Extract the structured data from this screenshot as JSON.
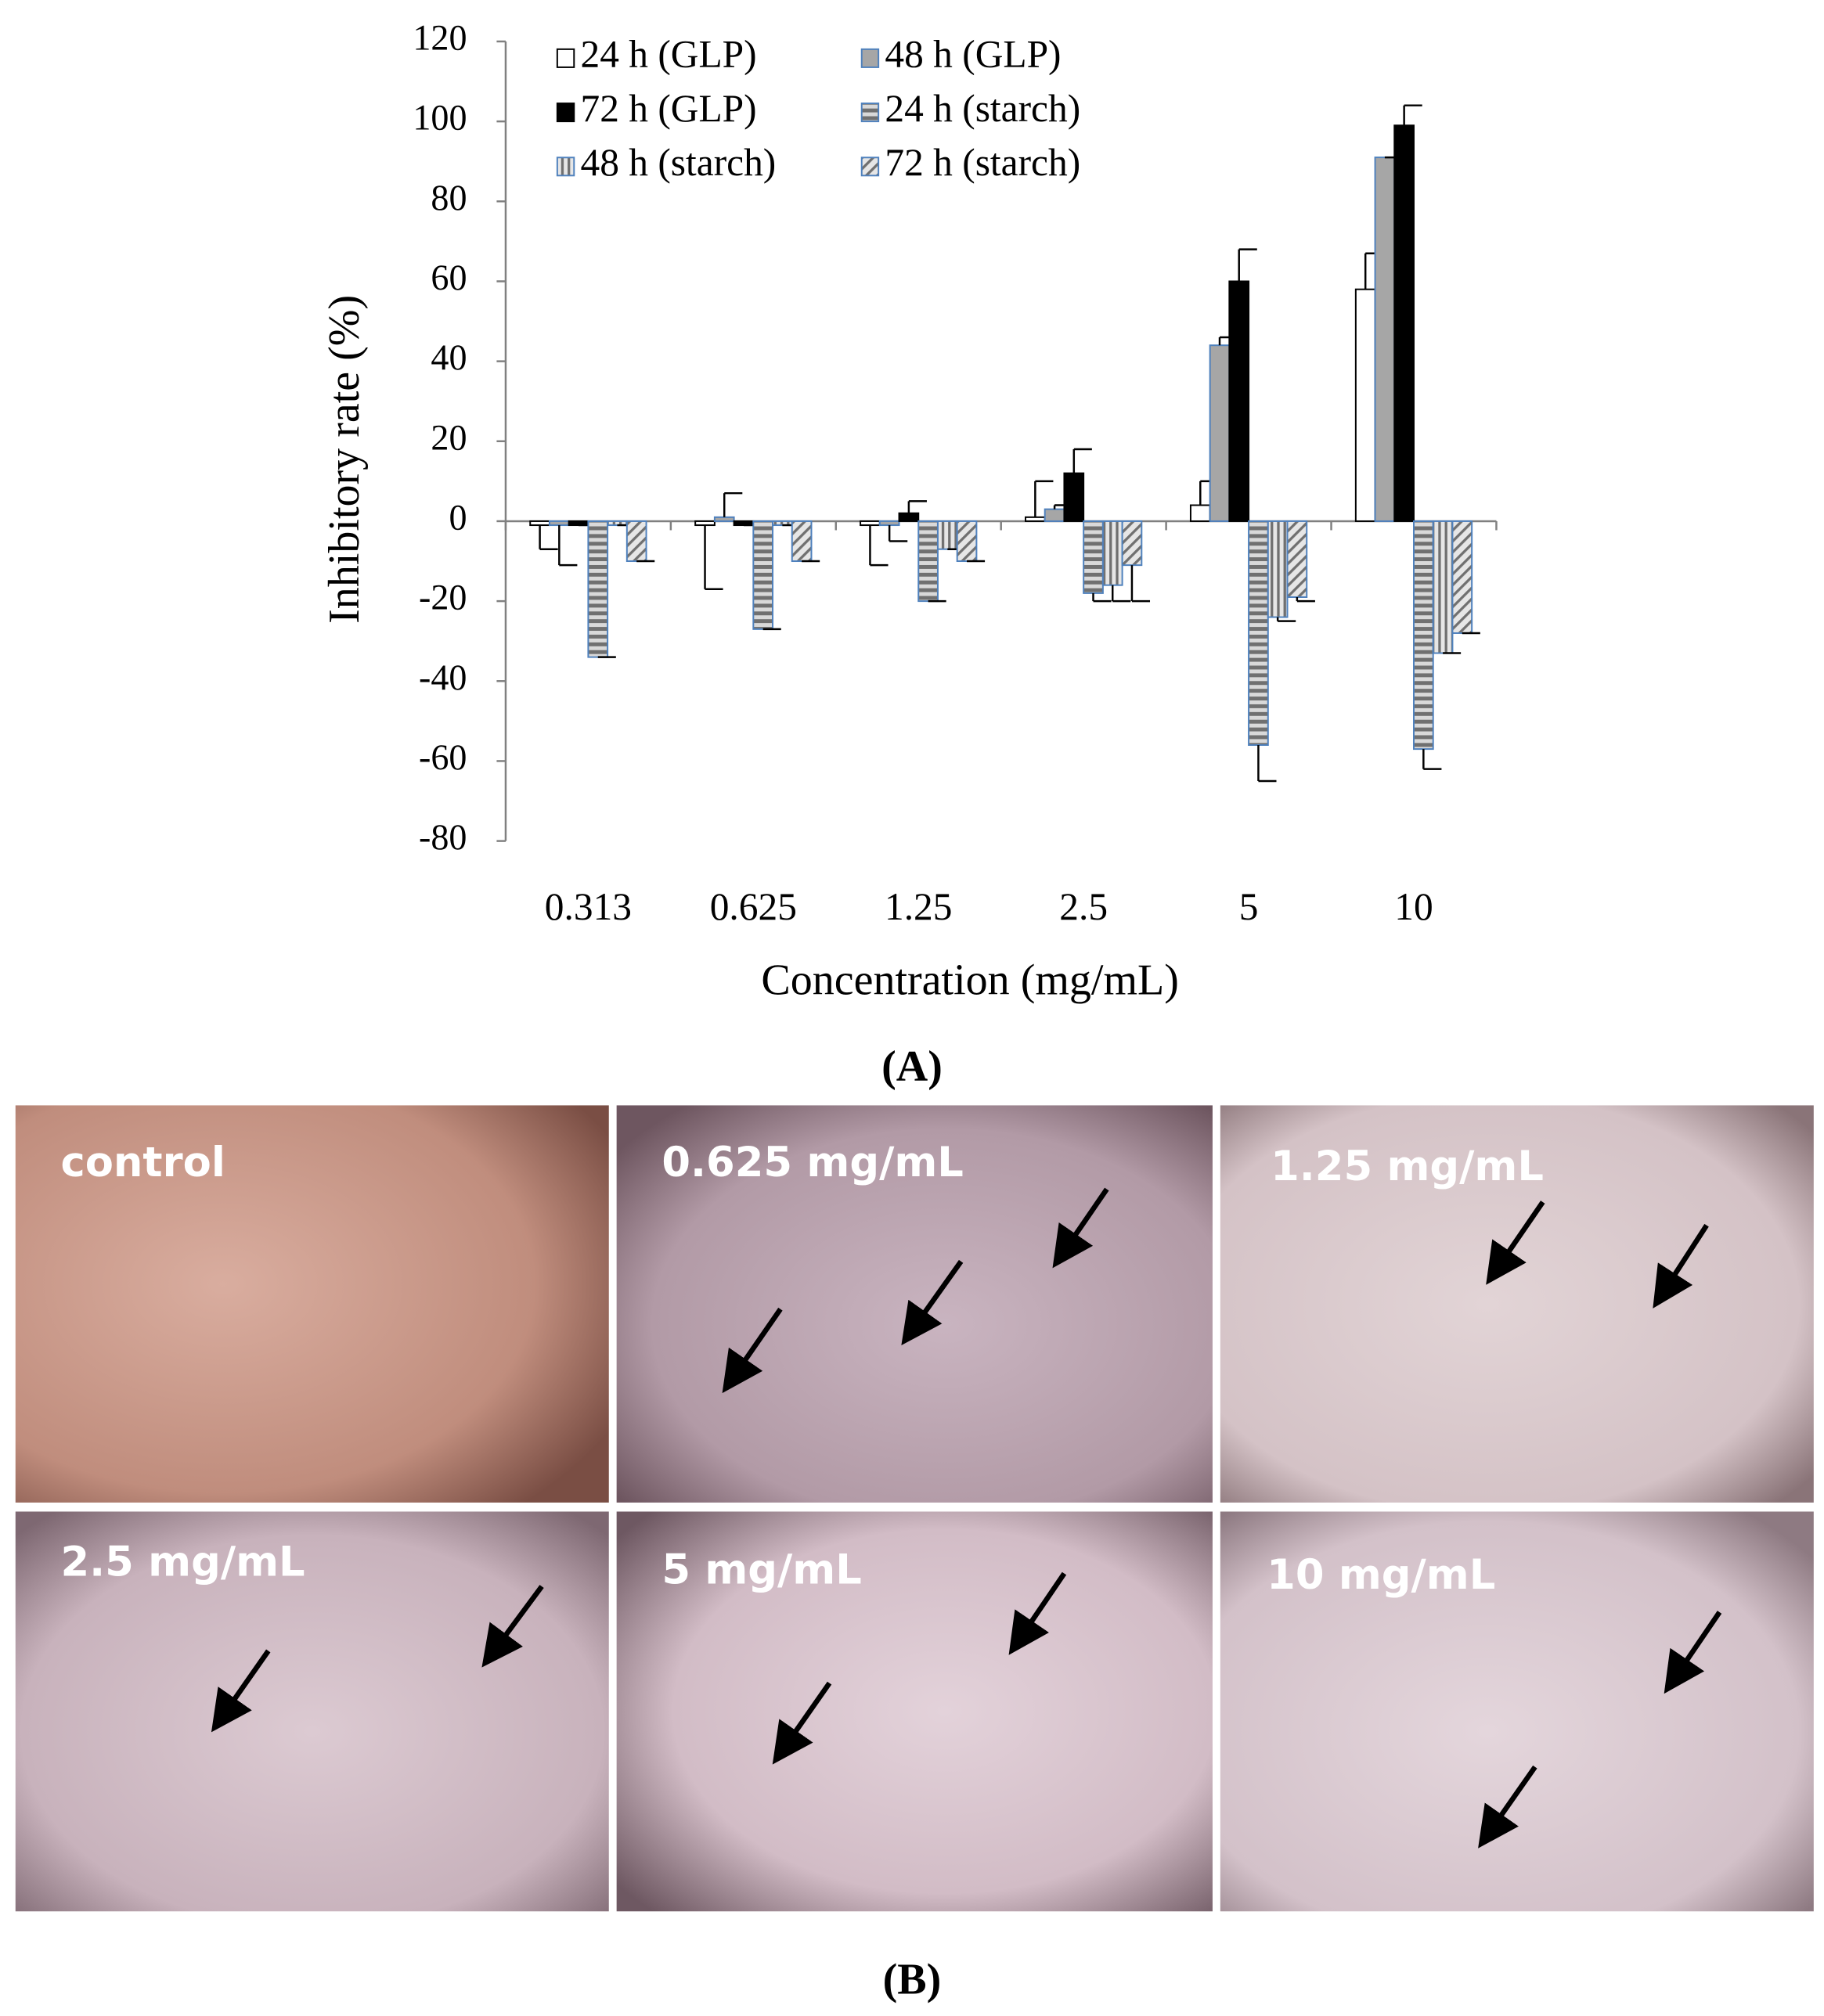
{
  "chart_data": {
    "type": "bar",
    "panel_label": "(A)",
    "x_label": "Concentration (mg/mL)",
    "y_label": "Inhibitory rate (%)",
    "categories": [
      "0.313",
      "0.625",
      "1.25",
      "2.5",
      "5",
      "10"
    ],
    "series": [
      {
        "name": "24 h (GLP)",
        "color": "#ffffff",
        "values": [
          -1,
          -1,
          -1,
          1,
          4,
          58
        ],
        "errors": [
          6,
          16,
          10,
          9,
          6,
          9
        ]
      },
      {
        "name": "48 h (GLP)",
        "color": "#a6a6a6",
        "values": [
          -1,
          1,
          -1,
          3,
          44,
          91
        ],
        "errors": [
          10,
          6,
          4,
          1,
          2,
          0
        ]
      },
      {
        "name": "72 h (GLP)",
        "color": "#000000",
        "values": [
          -1,
          -1,
          2,
          12,
          60,
          99
        ],
        "errors": [
          0,
          0,
          3,
          6,
          8,
          5
        ]
      },
      {
        "name": "24 h (starch)",
        "color": "#8c8c8c",
        "values": [
          -34,
          -27,
          -20,
          -18,
          -56,
          -57
        ],
        "errors": [
          0,
          0,
          0,
          2,
          9,
          5
        ]
      },
      {
        "name": "48 h (starch)",
        "color": "#b0b0b0",
        "values": [
          -1,
          -1,
          -7,
          -16,
          -24,
          -33
        ],
        "errors": [
          0,
          0,
          0,
          4,
          1,
          0
        ]
      },
      {
        "name": "72 h (starch)",
        "color": "#c8c8c8",
        "values": [
          -10,
          -10,
          -10,
          -11,
          -19,
          -28
        ],
        "errors": [
          0,
          0,
          0,
          9,
          1,
          0
        ]
      }
    ],
    "ylim": [
      -80,
      120
    ],
    "yticks": [
      -80,
      -60,
      -40,
      -20,
      0,
      20,
      40,
      60,
      80,
      100,
      120
    ]
  },
  "panel_b": {
    "label": "(B)",
    "images": [
      {
        "label": "control"
      },
      {
        "label": "0.625 mg/mL"
      },
      {
        "label": "1.25 mg/mL"
      },
      {
        "label": "2.5 mg/mL"
      },
      {
        "label": "5 mg/mL"
      },
      {
        "label": "10 mg/mL"
      }
    ]
  }
}
